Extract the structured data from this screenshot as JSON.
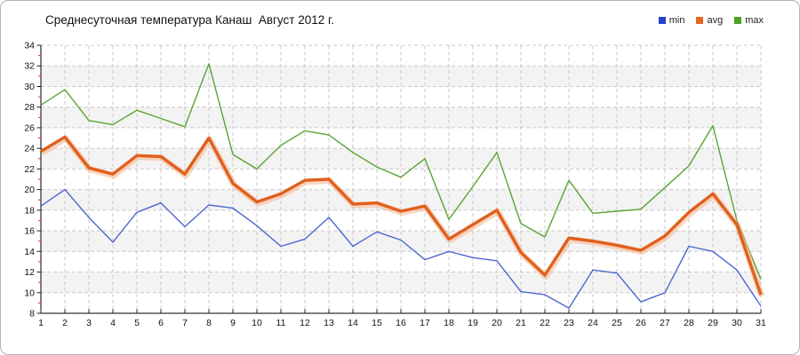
{
  "title": "Среднесуточная температура Канаш  Август 2012 г.",
  "legend": {
    "items": [
      {
        "label": "min",
        "color": "#2444cf"
      },
      {
        "label": "avg",
        "color": "#e8671f"
      },
      {
        "label": "max",
        "color": "#4ba026"
      }
    ]
  },
  "chart_data": {
    "type": "line",
    "title": "Среднесуточная температура Канаш  Август 2012 г.",
    "xlabel": "",
    "ylabel": "",
    "categories": [
      1,
      2,
      3,
      4,
      5,
      6,
      7,
      8,
      9,
      10,
      11,
      12,
      13,
      14,
      15,
      16,
      17,
      18,
      19,
      20,
      21,
      22,
      23,
      24,
      25,
      26,
      27,
      28,
      29,
      30,
      31
    ],
    "y_tick_labels": [
      8,
      10,
      12,
      14,
      16,
      18,
      20,
      22,
      24,
      26,
      28,
      30,
      32,
      34
    ],
    "ylim": [
      8,
      34
    ],
    "grid": true,
    "legend_position": "top-right",
    "band_color": "#f3f3f3",
    "grid_color": "#c9c9c9",
    "axis_color": "#000000",
    "minor_tick_color": "#d03a2a",
    "series": [
      {
        "name": "min",
        "color": "#4c68d0",
        "values": [
          18.4,
          20.0,
          17.3,
          14.9,
          17.8,
          18.7,
          16.4,
          18.5,
          18.2,
          16.5,
          14.5,
          15.2,
          17.3,
          14.5,
          15.9,
          15.1,
          13.2,
          14.0,
          13.4,
          13.1,
          10.1,
          9.8,
          8.5,
          12.2,
          11.9,
          9.1,
          10.0,
          14.5,
          14.0,
          12.2,
          8.7
        ]
      },
      {
        "name": "avg",
        "color": "#e05f1d",
        "halo_color": "#f5b58d",
        "values": [
          23.7,
          25.1,
          22.1,
          21.5,
          23.3,
          23.2,
          21.5,
          25.0,
          20.6,
          18.8,
          19.6,
          20.9,
          21.0,
          18.6,
          18.7,
          17.9,
          18.4,
          15.2,
          16.6,
          18.0,
          13.9,
          11.7,
          15.3,
          15.0,
          14.6,
          14.1,
          15.5,
          17.8,
          19.6,
          16.6,
          9.8
        ]
      },
      {
        "name": "max",
        "color": "#5aa434",
        "values": [
          28.2,
          29.7,
          26.7,
          26.3,
          27.7,
          26.9,
          26.1,
          32.2,
          23.4,
          22.0,
          24.3,
          25.7,
          25.3,
          23.6,
          22.2,
          21.2,
          23.0,
          17.1,
          20.3,
          23.6,
          16.7,
          15.4,
          20.9,
          17.7,
          17.9,
          18.1,
          20.2,
          22.3,
          26.2,
          17.0,
          11.3
        ]
      }
    ]
  }
}
